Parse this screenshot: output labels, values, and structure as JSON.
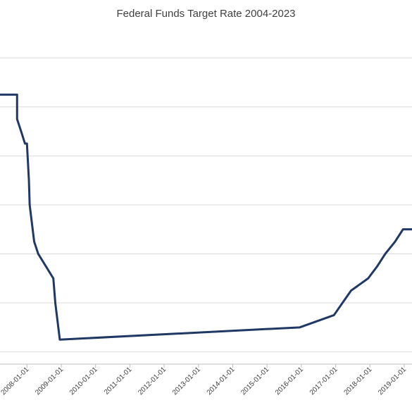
{
  "chart_data": {
    "type": "line",
    "title": "Federal Funds Target Rate 2004-2023",
    "xlabel": "",
    "ylabel": "",
    "x_range": [
      "2007-03-20",
      "2019-03-25"
    ],
    "ylim": [
      -0.25,
      6.75
    ],
    "y_gridlines": [
      0,
      1,
      2,
      3,
      4,
      5,
      6
    ],
    "grid": "horizontal",
    "legend": "none",
    "series_color": "#1f3864",
    "x_tick_labels": [
      "2008-01-01",
      "2009-01-01",
      "2010-01-01",
      "2011-01-01",
      "2012-01-01",
      "2013-01-01",
      "2014-01-01",
      "2015-01-01",
      "2016-01-01",
      "2017-01-01",
      "2018-01-01",
      "2019-01-01"
    ],
    "series": [
      {
        "points": [
          [
            "2007-03-20",
            5.25
          ],
          [
            "2007-09-18",
            5.25
          ],
          [
            "2007-09-18",
            4.75
          ],
          [
            "2007-10-31",
            4.5
          ],
          [
            "2007-12-11",
            4.25
          ],
          [
            "2008-01-01",
            4.25
          ],
          [
            "2008-01-22",
            3.5
          ],
          [
            "2008-01-30",
            3.0
          ],
          [
            "2008-03-18",
            2.25
          ],
          [
            "2008-04-30",
            2.0
          ],
          [
            "2008-10-08",
            1.5
          ],
          [
            "2008-10-29",
            1.0
          ],
          [
            "2008-12-16",
            0.25
          ],
          [
            "2015-12-16",
            0.5
          ],
          [
            "2016-12-14",
            0.75
          ],
          [
            "2017-03-15",
            1.0
          ],
          [
            "2017-06-14",
            1.25
          ],
          [
            "2017-12-13",
            1.5
          ],
          [
            "2018-03-21",
            1.75
          ],
          [
            "2018-06-13",
            2.0
          ],
          [
            "2018-09-26",
            2.25
          ],
          [
            "2018-12-19",
            2.5
          ],
          [
            "2019-03-25",
            2.5
          ]
        ]
      }
    ]
  }
}
